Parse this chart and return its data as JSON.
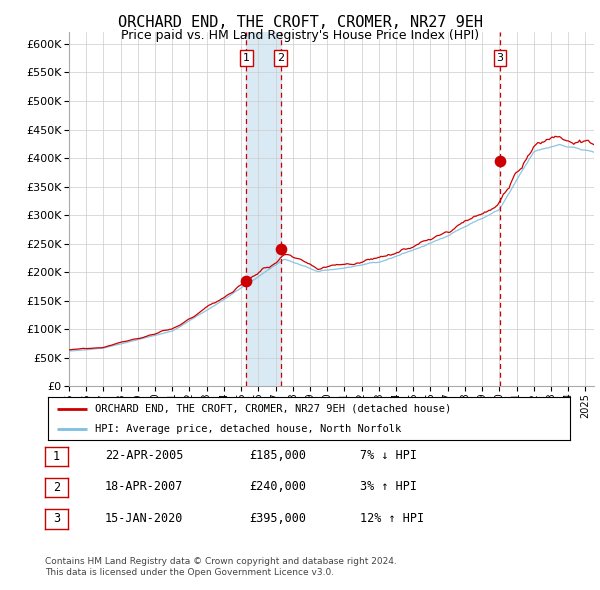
{
  "title": "ORCHARD END, THE CROFT, CROMER, NR27 9EH",
  "subtitle": "Price paid vs. HM Land Registry's House Price Index (HPI)",
  "legend_line1": "ORCHARD END, THE CROFT, CROMER, NR27 9EH (detached house)",
  "legend_line2": "HPI: Average price, detached house, North Norfolk",
  "footer1": "Contains HM Land Registry data © Crown copyright and database right 2024.",
  "footer2": "This data is licensed under the Open Government Licence v3.0.",
  "transactions": [
    {
      "num": 1,
      "date": "22-APR-2005",
      "price": "£185,000",
      "pct": "7% ↓ HPI",
      "x_year": 2005.3,
      "price_val": 185000
    },
    {
      "num": 2,
      "date": "18-APR-2007",
      "price": "£240,000",
      "pct": "3% ↑ HPI",
      "x_year": 2007.3,
      "price_val": 240000
    },
    {
      "num": 3,
      "date": "15-JAN-2020",
      "price": "£395,000",
      "pct": "12% ↑ HPI",
      "x_year": 2020.04,
      "price_val": 395000
    }
  ],
  "hpi_color": "#7fbfdf",
  "price_color": "#cc0000",
  "dot_color": "#cc0000",
  "vline_color": "#cc0000",
  "shade_color": "#daeaf5",
  "ylim": [
    0,
    620000
  ],
  "xlim_start": 1995.0,
  "xlim_end": 2025.5,
  "background_color": "#ffffff",
  "grid_color": "#cccccc"
}
